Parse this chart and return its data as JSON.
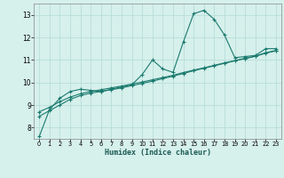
{
  "xlabel": "Humidex (Indice chaleur)",
  "background_color": "#d6f0ec",
  "grid_color": "#b8ddd8",
  "line_color": "#1a7a6e",
  "xlim": [
    -0.5,
    23.5
  ],
  "ylim": [
    7.5,
    13.5
  ],
  "yticks": [
    8,
    9,
    10,
    11,
    12,
    13
  ],
  "xticks": [
    0,
    1,
    2,
    3,
    4,
    5,
    6,
    7,
    8,
    9,
    10,
    11,
    12,
    13,
    14,
    15,
    16,
    17,
    18,
    19,
    20,
    21,
    22,
    23
  ],
  "series1_x": [
    0,
    1,
    2,
    3,
    4,
    5,
    6,
    7,
    8,
    9,
    10,
    11,
    12,
    13,
    14,
    15,
    16,
    17,
    18,
    19,
    20,
    21,
    22,
    23
  ],
  "series1_y": [
    7.6,
    8.8,
    9.3,
    9.6,
    9.7,
    9.65,
    9.6,
    9.7,
    9.8,
    9.9,
    10.35,
    11.0,
    10.6,
    10.45,
    11.8,
    13.05,
    13.2,
    12.8,
    12.1,
    11.1,
    11.15,
    11.2,
    11.5,
    11.5
  ],
  "series2_x": [
    0,
    1,
    2,
    3,
    4,
    5,
    6,
    7,
    8,
    9,
    10,
    11,
    12,
    13,
    14,
    15,
    16,
    17,
    18,
    19,
    20,
    21,
    22,
    23
  ],
  "series2_y": [
    8.7,
    8.9,
    9.15,
    9.35,
    9.5,
    9.6,
    9.68,
    9.76,
    9.84,
    9.93,
    10.02,
    10.12,
    10.22,
    10.32,
    10.44,
    10.55,
    10.65,
    10.76,
    10.87,
    10.97,
    11.07,
    11.17,
    11.32,
    11.42
  ],
  "series3_x": [
    0,
    1,
    2,
    3,
    4,
    5,
    6,
    7,
    8,
    9,
    10,
    11,
    12,
    13,
    14,
    15,
    16,
    17,
    18,
    19,
    20,
    21,
    22,
    23
  ],
  "series3_y": [
    8.5,
    8.75,
    9.0,
    9.25,
    9.42,
    9.53,
    9.6,
    9.68,
    9.76,
    9.86,
    9.96,
    10.06,
    10.17,
    10.28,
    10.4,
    10.52,
    10.63,
    10.74,
    10.85,
    10.96,
    11.06,
    11.16,
    11.3,
    11.4
  ]
}
